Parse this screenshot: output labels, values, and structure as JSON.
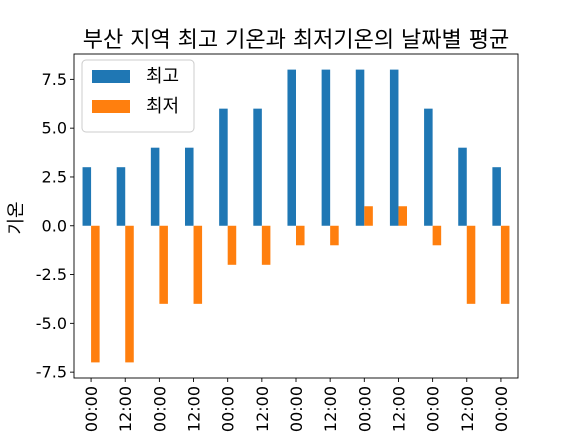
{
  "chart_data": {
    "type": "bar",
    "title": "부산 지역 최고 기온과 최저기온의 날짜별 평균",
    "xlabel": "",
    "ylabel": "기온",
    "categories": [
      "00:00",
      "12:00",
      "00:00",
      "12:00",
      "00:00",
      "12:00",
      "00:00",
      "12:00",
      "00:00",
      "12:00",
      "00:00",
      "12:00",
      "00:00"
    ],
    "series": [
      {
        "name": "최고",
        "color": "#1f77b4",
        "values": [
          3,
          3,
          4,
          4,
          6,
          6,
          8,
          8,
          8,
          8,
          6,
          4,
          3
        ]
      },
      {
        "name": "최저",
        "color": "#ff7f0e",
        "values": [
          -7,
          -7,
          -4,
          -4,
          -2,
          -2,
          -1,
          -1,
          1,
          1,
          -1,
          -4,
          -4
        ]
      }
    ],
    "ylim": [
      -7.8,
      8.8
    ],
    "yticks": [
      "-7.5",
      "-5.0",
      "-2.5",
      "0.0",
      "2.5",
      "5.0",
      "7.5"
    ],
    "grid": false,
    "legend_position": "top-left"
  }
}
